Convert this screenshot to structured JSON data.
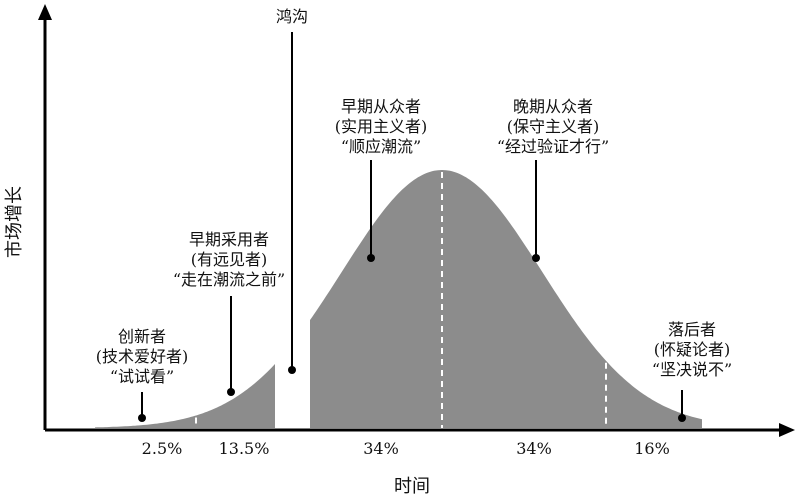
{
  "axes": {
    "y_label": "市场增长",
    "x_label": "时间"
  },
  "colors": {
    "curve_fill": "#8c8c8c",
    "axis": "#000000",
    "divider": "#ffffff"
  },
  "chasm_label": "鸿沟",
  "segments": [
    {
      "name": "创新者",
      "alias": "(技术爱好者)",
      "quote": "“试试看”",
      "percent": "2.5%"
    },
    {
      "name": "早期采用者",
      "alias": "(有远见者)",
      "quote": "“走在潮流之前”",
      "percent": "13.5%"
    },
    {
      "name": "早期从众者",
      "alias": "(实用主义者)",
      "quote": "“顺应潮流”",
      "percent": "34%"
    },
    {
      "name": "晚期从众者",
      "alias": "(保守主义者)",
      "quote": "“经过验证才行”",
      "percent": "34%"
    },
    {
      "name": "落后者",
      "alias": "(怀疑论者)",
      "quote": "“坚决说不”",
      "percent": "16%"
    }
  ]
}
